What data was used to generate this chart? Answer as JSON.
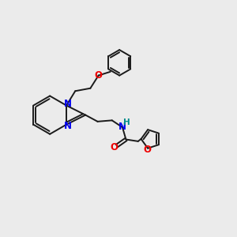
{
  "background_color": "#ebebeb",
  "bond_color": "#1a1a1a",
  "N_color": "#0000ee",
  "O_color": "#ee0000",
  "H_color": "#008b8b",
  "lw": 1.4,
  "dbo": 0.045,
  "xlim": [
    0,
    10
  ],
  "ylim": [
    0,
    10
  ]
}
